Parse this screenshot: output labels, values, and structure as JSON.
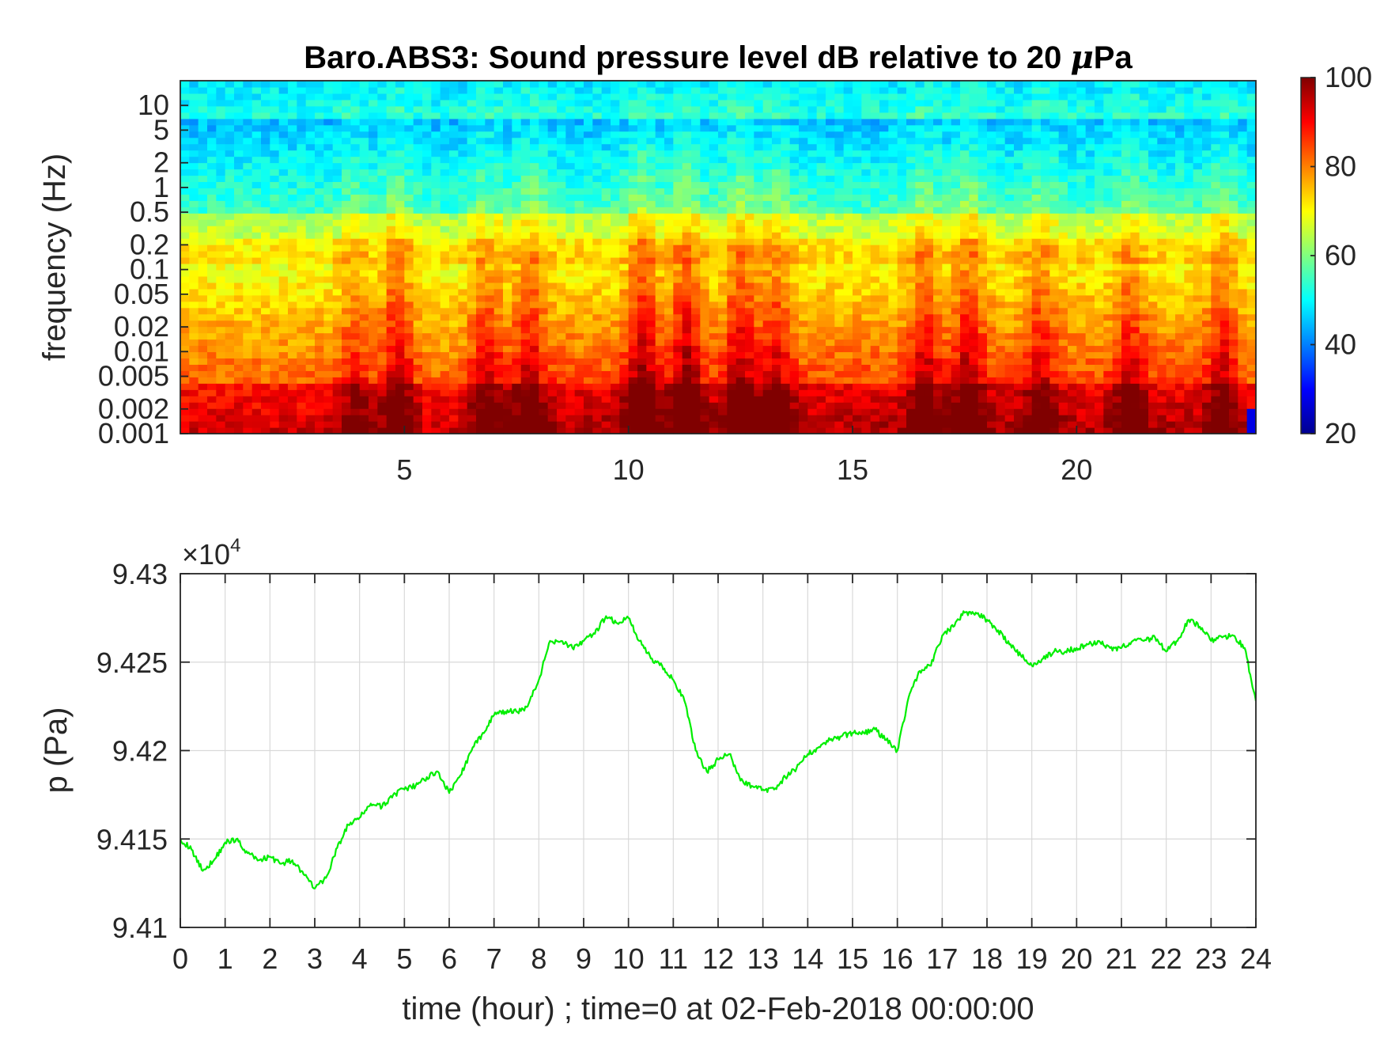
{
  "figure": {
    "spectrogram_title_prefix": "Baro.ABS3: Sound pressure level dB relative to 20 ",
    "spectrogram_title_mu": "μ",
    "spectrogram_title_suffix": "Pa",
    "spectrogram_ylabel": "frequency (Hz)",
    "pressure_ylabel": "p (Pa)",
    "pressure_xlabel": "time (hour) ; time=0 at 02-Feb-2018 00:00:00",
    "pressure_exponent_prefix": "×10",
    "pressure_exponent_power": "4"
  },
  "colors": {
    "line": "#00ee00",
    "colormap": "jet"
  },
  "chart_data": [
    {
      "type": "heatmap",
      "title": "Baro.ABS3: Sound pressure level dB relative to 20 μPa",
      "xlabel": "",
      "ylabel": "frequency (Hz)",
      "x_scale": "linear",
      "y_scale": "log",
      "xlim": [
        0,
        24
      ],
      "ylim": [
        0.001,
        20
      ],
      "x_ticks": [
        5,
        10,
        15,
        20
      ],
      "y_ticks": [
        0.001,
        0.002,
        0.005,
        0.01,
        0.02,
        0.05,
        0.1,
        0.2,
        0.5,
        1,
        2,
        5,
        10
      ],
      "y_tick_labels": [
        "0.001",
        "0.002",
        "0.005",
        "0.01",
        "0.02",
        "0.05",
        "0.1",
        "0.2",
        "0.5",
        "1",
        "2",
        "5",
        "10"
      ],
      "colorbar": {
        "min": 20,
        "max": 100,
        "ticks": [
          20,
          40,
          60,
          80,
          100
        ],
        "colormap": "jet"
      },
      "bursts": [
        {
          "time": 3.9,
          "strength": 0.55
        },
        {
          "time": 4.85,
          "strength": 0.9
        },
        {
          "time": 6.8,
          "strength": 0.75
        },
        {
          "time": 7.8,
          "strength": 0.7
        },
        {
          "time": 10.3,
          "strength": 1.0
        },
        {
          "time": 11.3,
          "strength": 1.0
        },
        {
          "time": 12.5,
          "strength": 0.85
        },
        {
          "time": 13.3,
          "strength": 0.7
        },
        {
          "time": 16.6,
          "strength": 0.8
        },
        {
          "time": 17.6,
          "strength": 0.85
        },
        {
          "time": 19.2,
          "strength": 0.65
        },
        {
          "time": 21.2,
          "strength": 0.65
        },
        {
          "time": 23.3,
          "strength": 0.7
        }
      ],
      "grid": false
    },
    {
      "type": "line",
      "title": "",
      "xlabel": "time (hour) ; time=0 at 02-Feb-2018 00:00:00",
      "ylabel": "p (Pa)",
      "xlim": [
        0,
        24
      ],
      "ylim": [
        94100,
        94300
      ],
      "x_ticks": [
        0,
        1,
        2,
        3,
        4,
        5,
        6,
        7,
        8,
        9,
        10,
        11,
        12,
        13,
        14,
        15,
        16,
        17,
        18,
        19,
        20,
        21,
        22,
        23,
        24
      ],
      "y_ticks": [
        94100,
        94150,
        94200,
        94250,
        94300
      ],
      "y_tick_labels": [
        "9.41",
        "9.415",
        "9.42",
        "9.425",
        "9.43"
      ],
      "y_exponent": "×10^4",
      "grid": true,
      "series": [
        {
          "color": "#00ee00",
          "x": [
            0,
            0.25,
            0.5,
            0.75,
            1.0,
            1.25,
            1.5,
            1.75,
            2.0,
            2.25,
            2.5,
            2.75,
            3.0,
            3.25,
            3.5,
            3.75,
            4.0,
            4.25,
            4.5,
            4.75,
            5.0,
            5.25,
            5.5,
            5.75,
            6.0,
            6.25,
            6.5,
            6.75,
            7.0,
            7.25,
            7.5,
            7.75,
            8.0,
            8.25,
            8.5,
            8.75,
            9.0,
            9.25,
            9.5,
            9.75,
            10.0,
            10.25,
            10.5,
            10.75,
            11.0,
            11.25,
            11.5,
            11.75,
            12.0,
            12.25,
            12.5,
            12.75,
            13.0,
            13.25,
            13.5,
            13.75,
            14.0,
            14.25,
            14.5,
            14.75,
            15.0,
            15.25,
            15.5,
            15.75,
            16.0,
            16.25,
            16.5,
            16.75,
            17.0,
            17.25,
            17.5,
            17.75,
            18.0,
            18.25,
            18.5,
            18.75,
            19.0,
            19.25,
            19.5,
            19.75,
            20.0,
            20.25,
            20.5,
            20.75,
            21.0,
            21.25,
            21.5,
            21.75,
            22.0,
            22.25,
            22.5,
            22.75,
            23.0,
            23.25,
            23.5,
            23.75,
            24.0
          ],
          "y": [
            94150,
            94144,
            94132,
            94138,
            94148,
            94150,
            94142,
            94138,
            94140,
            94136,
            94138,
            94130,
            94122,
            94128,
            94145,
            94158,
            94162,
            94170,
            94168,
            94175,
            94178,
            94180,
            94185,
            94188,
            94176,
            94186,
            94200,
            94210,
            94220,
            94222,
            94222,
            94225,
            94240,
            94262,
            94262,
            94258,
            94262,
            94266,
            94276,
            94272,
            94275,
            94262,
            94252,
            94248,
            94240,
            94228,
            94200,
            94188,
            94195,
            94198,
            94183,
            94180,
            94178,
            94178,
            94185,
            94190,
            94198,
            94202,
            94206,
            94208,
            94210,
            94210,
            94212,
            94206,
            94200,
            94230,
            94245,
            94248,
            94265,
            94270,
            94278,
            94278,
            94274,
            94268,
            94260,
            94254,
            94248,
            94252,
            94256,
            94256,
            94258,
            94260,
            94262,
            94258,
            94258,
            94262,
            94262,
            94264,
            94256,
            94262,
            94274,
            94270,
            94262,
            94264,
            94265,
            94258,
            94228
          ]
        }
      ]
    }
  ]
}
